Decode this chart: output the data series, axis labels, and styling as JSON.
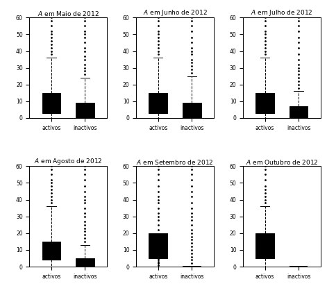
{
  "titles": [
    "em Maio de 2012",
    "em Junho de 2012",
    "em Julho de 2012",
    "em Agosto de 2012",
    "em Setembro de 2012",
    "em Outubro de 2012"
  ],
  "box_color": "#DD0000",
  "median_color": "#000000",
  "figsize": [
    4.71,
    4.22
  ],
  "dpi": 100,
  "plots": [
    {
      "activos": {
        "q1": 3,
        "median": 10,
        "q3": 15,
        "whislo": 0,
        "whishi": 36,
        "fliers": [
          38,
          40,
          42,
          44,
          46,
          48,
          50,
          52,
          55,
          58,
          60
        ]
      },
      "inactivos": {
        "q1": 0,
        "median": 1,
        "q3": 9,
        "whislo": 0,
        "whishi": 24,
        "fliers": [
          26,
          28,
          30,
          32,
          35,
          37,
          40,
          42,
          45,
          48,
          50,
          52,
          55,
          58,
          60
        ]
      }
    },
    {
      "activos": {
        "q1": 3,
        "median": 10,
        "q3": 15,
        "whislo": 0,
        "whishi": 36,
        "fliers": [
          38,
          40,
          42,
          44,
          46,
          48,
          50,
          52,
          55,
          58,
          60
        ]
      },
      "inactivos": {
        "q1": 0,
        "median": 1,
        "q3": 9,
        "whislo": 0,
        "whishi": 25,
        "fliers": [
          27,
          29,
          31,
          33,
          35,
          38,
          40,
          42,
          45,
          48,
          52,
          55,
          58,
          60
        ]
      }
    },
    {
      "activos": {
        "q1": 3,
        "median": 10,
        "q3": 15,
        "whislo": 0,
        "whishi": 36,
        "fliers": [
          38,
          40,
          42,
          44,
          46,
          48,
          50,
          52,
          55,
          58,
          60
        ]
      },
      "inactivos": {
        "q1": 0,
        "median": 1,
        "q3": 7,
        "whislo": 0,
        "whishi": 16,
        "fliers": [
          18,
          20,
          22,
          24,
          26,
          28,
          30,
          32,
          35,
          38,
          42,
          45,
          48,
          52,
          55,
          58,
          60
        ]
      }
    },
    {
      "activos": {
        "q1": 4,
        "median": 10,
        "q3": 15,
        "whislo": 0,
        "whishi": 36,
        "fliers": [
          38,
          40,
          42,
          44,
          46,
          48,
          50,
          52,
          55,
          58,
          60
        ]
      },
      "inactivos": {
        "q1": 0,
        "median": 2,
        "q3": 5,
        "whislo": 0,
        "whishi": 13,
        "fliers": [
          15,
          17,
          19,
          21,
          23,
          25,
          27,
          30,
          32,
          35,
          38,
          40,
          42,
          45,
          48,
          52,
          55,
          58,
          60
        ]
      }
    },
    {
      "activos": {
        "q1": 5,
        "median": 10,
        "q3": 20,
        "whislo": 0,
        "whishi": 0,
        "fliers": [
          1,
          2,
          3,
          4,
          5,
          6,
          7,
          8,
          9,
          10,
          12,
          14,
          16,
          18,
          22,
          25,
          28,
          30,
          32,
          35,
          38,
          40,
          42,
          45,
          48,
          52,
          55,
          58,
          60
        ]
      },
      "inactivos": {
        "q1": 0,
        "median": 0,
        "q3": 0,
        "whislo": 0,
        "whishi": 0,
        "fliers": [
          2,
          4,
          6,
          8,
          10,
          12,
          14,
          16,
          18,
          20,
          22,
          25,
          28,
          30,
          32,
          35,
          38,
          42,
          45,
          48,
          52,
          55,
          58,
          60
        ]
      }
    },
    {
      "activos": {
        "q1": 5,
        "median": 10,
        "q3": 20,
        "whislo": 0,
        "whishi": 36,
        "fliers": [
          38,
          40,
          42,
          44,
          46,
          48,
          52,
          55,
          58,
          60
        ]
      },
      "inactivos": {
        "q1": 0,
        "median": 0,
        "q3": 0,
        "whislo": 0,
        "whishi": 0,
        "fliers": []
      }
    }
  ]
}
